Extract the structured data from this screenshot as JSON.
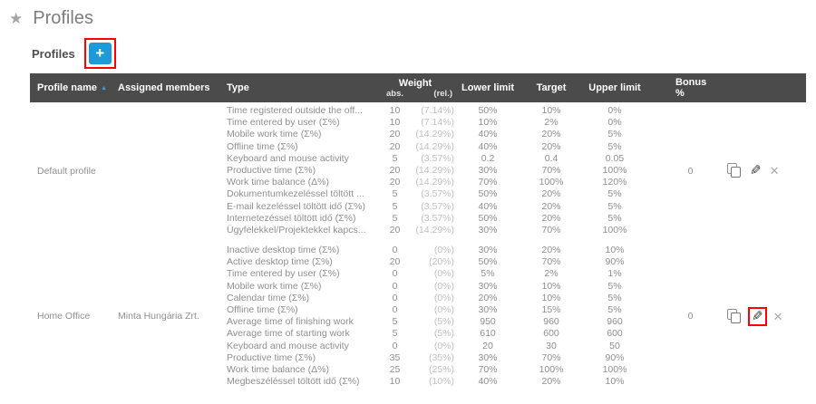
{
  "page": {
    "title": "Profiles",
    "star_icon": "★"
  },
  "toolbar": {
    "label": "Profiles",
    "add_button": "+",
    "add_button_highlighted": true
  },
  "colors": {
    "accent_blue": "#1d9bd8",
    "annotation_red": "#ff0000",
    "header_bg": "#4b4b4b",
    "sort_arrow_blue": "#2ba7df"
  },
  "icons": {
    "sort_asc": "▲",
    "edit": "✎",
    "delete": "✕"
  },
  "table": {
    "headers": {
      "profile_name": "Profile name",
      "assigned_members": "Assigned members",
      "type": "Type",
      "weight": "Weight",
      "weight_abs": "abs.",
      "weight_rel": "(rel.)",
      "lower_limit": "Lower limit",
      "target": "Target",
      "upper_limit": "Upper limit",
      "bonus": "Bonus %"
    },
    "groups": [
      {
        "profile_name": "Default profile",
        "assigned_members": "",
        "bonus": "0",
        "edit_highlighted": false,
        "rows": [
          {
            "type": "Time registered outside the off...",
            "abs": "10",
            "rel": "(7.14%)",
            "lower": "50%",
            "target": "10%",
            "upper": "0%"
          },
          {
            "type": "Time entered by user (Σ%)",
            "abs": "10",
            "rel": "(7.14%)",
            "lower": "10%",
            "target": "2%",
            "upper": "0%"
          },
          {
            "type": "Mobile work time (Σ%)",
            "abs": "20",
            "rel": "(14.29%)",
            "lower": "40%",
            "target": "20%",
            "upper": "5%"
          },
          {
            "type": "Offline time (Σ%)",
            "abs": "20",
            "rel": "(14.29%)",
            "lower": "40%",
            "target": "20%",
            "upper": "5%"
          },
          {
            "type": "Keyboard and mouse activity",
            "abs": "5",
            "rel": "(3.57%)",
            "lower": "0.2",
            "target": "0.4",
            "upper": "0.05"
          },
          {
            "type": "Productive time (Σ%)",
            "abs": "20",
            "rel": "(14.29%)",
            "lower": "30%",
            "target": "70%",
            "upper": "100%"
          },
          {
            "type": "Work time balance (Δ%)",
            "abs": "20",
            "rel": "(14.29%)",
            "lower": "70%",
            "target": "100%",
            "upper": "120%"
          },
          {
            "type": "Dokumentumkezeléssel töltött ...",
            "abs": "5",
            "rel": "(3.57%)",
            "lower": "50%",
            "target": "20%",
            "upper": "5%"
          },
          {
            "type": "E-mail kezeléssel töltött idő (Σ%)",
            "abs": "5",
            "rel": "(3.57%)",
            "lower": "40%",
            "target": "20%",
            "upper": "5%"
          },
          {
            "type": "Internetezéssel töltött idő (Σ%)",
            "abs": "5",
            "rel": "(3.57%)",
            "lower": "50%",
            "target": "20%",
            "upper": "5%"
          },
          {
            "type": "Ügyfelekkel/Projektekkel kapcs...",
            "abs": "20",
            "rel": "(14.29%)",
            "lower": "30%",
            "target": "70%",
            "upper": "100%"
          }
        ]
      },
      {
        "profile_name": "Home Office",
        "assigned_members": "Minta Hungária Zrt.",
        "bonus": "0",
        "edit_highlighted": true,
        "rows": [
          {
            "type": "Inactive desktop time (Σ%)",
            "abs": "0",
            "rel": "(0%)",
            "lower": "30%",
            "target": "20%",
            "upper": "10%"
          },
          {
            "type": "Active desktop time (Σ%)",
            "abs": "20",
            "rel": "(20%)",
            "lower": "50%",
            "target": "70%",
            "upper": "90%"
          },
          {
            "type": "Time entered by user (Σ%)",
            "abs": "0",
            "rel": "(0%)",
            "lower": "5%",
            "target": "2%",
            "upper": "1%"
          },
          {
            "type": "Mobile work time (Σ%)",
            "abs": "0",
            "rel": "(0%)",
            "lower": "30%",
            "target": "10%",
            "upper": "5%"
          },
          {
            "type": "Calendar time (Σ%)",
            "abs": "0",
            "rel": "(0%)",
            "lower": "20%",
            "target": "10%",
            "upper": "5%"
          },
          {
            "type": "Offline time (Σ%)",
            "abs": "0",
            "rel": "(0%)",
            "lower": "30%",
            "target": "15%",
            "upper": "5%"
          },
          {
            "type": "Average time of finishing work",
            "abs": "5",
            "rel": "(5%)",
            "lower": "950",
            "target": "960",
            "upper": "960"
          },
          {
            "type": "Average time of starting work",
            "abs": "5",
            "rel": "(5%)",
            "lower": "610",
            "target": "600",
            "upper": "600"
          },
          {
            "type": "Keyboard and mouse activity",
            "abs": "0",
            "rel": "(0%)",
            "lower": "20",
            "target": "30",
            "upper": "50"
          },
          {
            "type": "Productive time (Σ%)",
            "abs": "35",
            "rel": "(35%)",
            "lower": "30%",
            "target": "70%",
            "upper": "90%"
          },
          {
            "type": "Work time balance (Δ%)",
            "abs": "25",
            "rel": "(25%)",
            "lower": "70%",
            "target": "100%",
            "upper": "100%"
          },
          {
            "type": "Megbeszéléssel töltött idő (Σ%)",
            "abs": "10",
            "rel": "(10%)",
            "lower": "40%",
            "target": "20%",
            "upper": "10%"
          }
        ]
      }
    ]
  }
}
